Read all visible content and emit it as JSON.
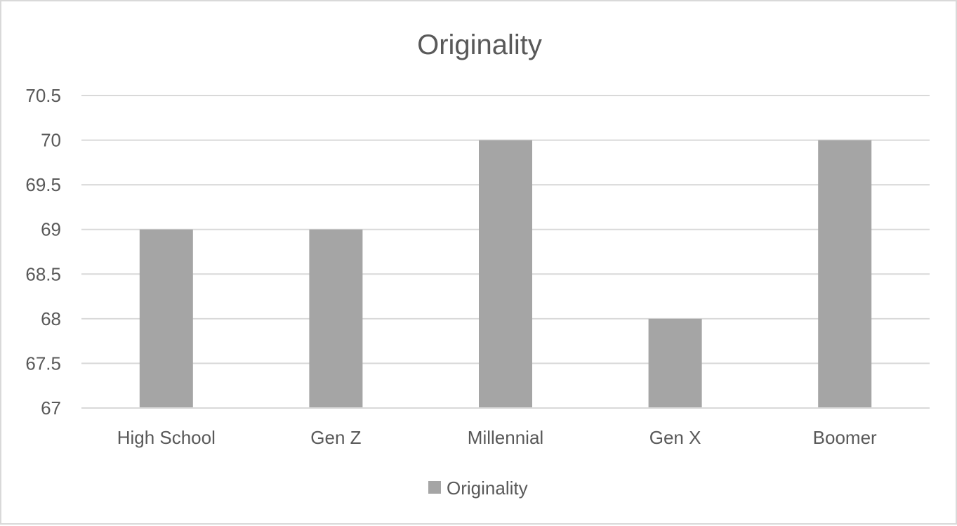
{
  "chart_data": {
    "type": "bar",
    "title": "Originality",
    "xlabel": "",
    "ylabel": "",
    "categories": [
      "High School",
      "Gen Z",
      "Millennial",
      "Gen X",
      "Boomer"
    ],
    "series": [
      {
        "name": "Originality",
        "values": [
          69,
          69,
          70,
          68,
          70
        ],
        "color": "#a5a5a5"
      }
    ],
    "ylim": [
      67,
      70.5
    ],
    "yticks": [
      "67",
      "67.5",
      "68",
      "68.5",
      "69",
      "69.5",
      "70",
      "70.5"
    ],
    "grid": true,
    "legend_position": "bottom",
    "colors": {
      "gridline": "#d9d9d9",
      "text": "#595959",
      "border": "#d9d9d9"
    }
  }
}
